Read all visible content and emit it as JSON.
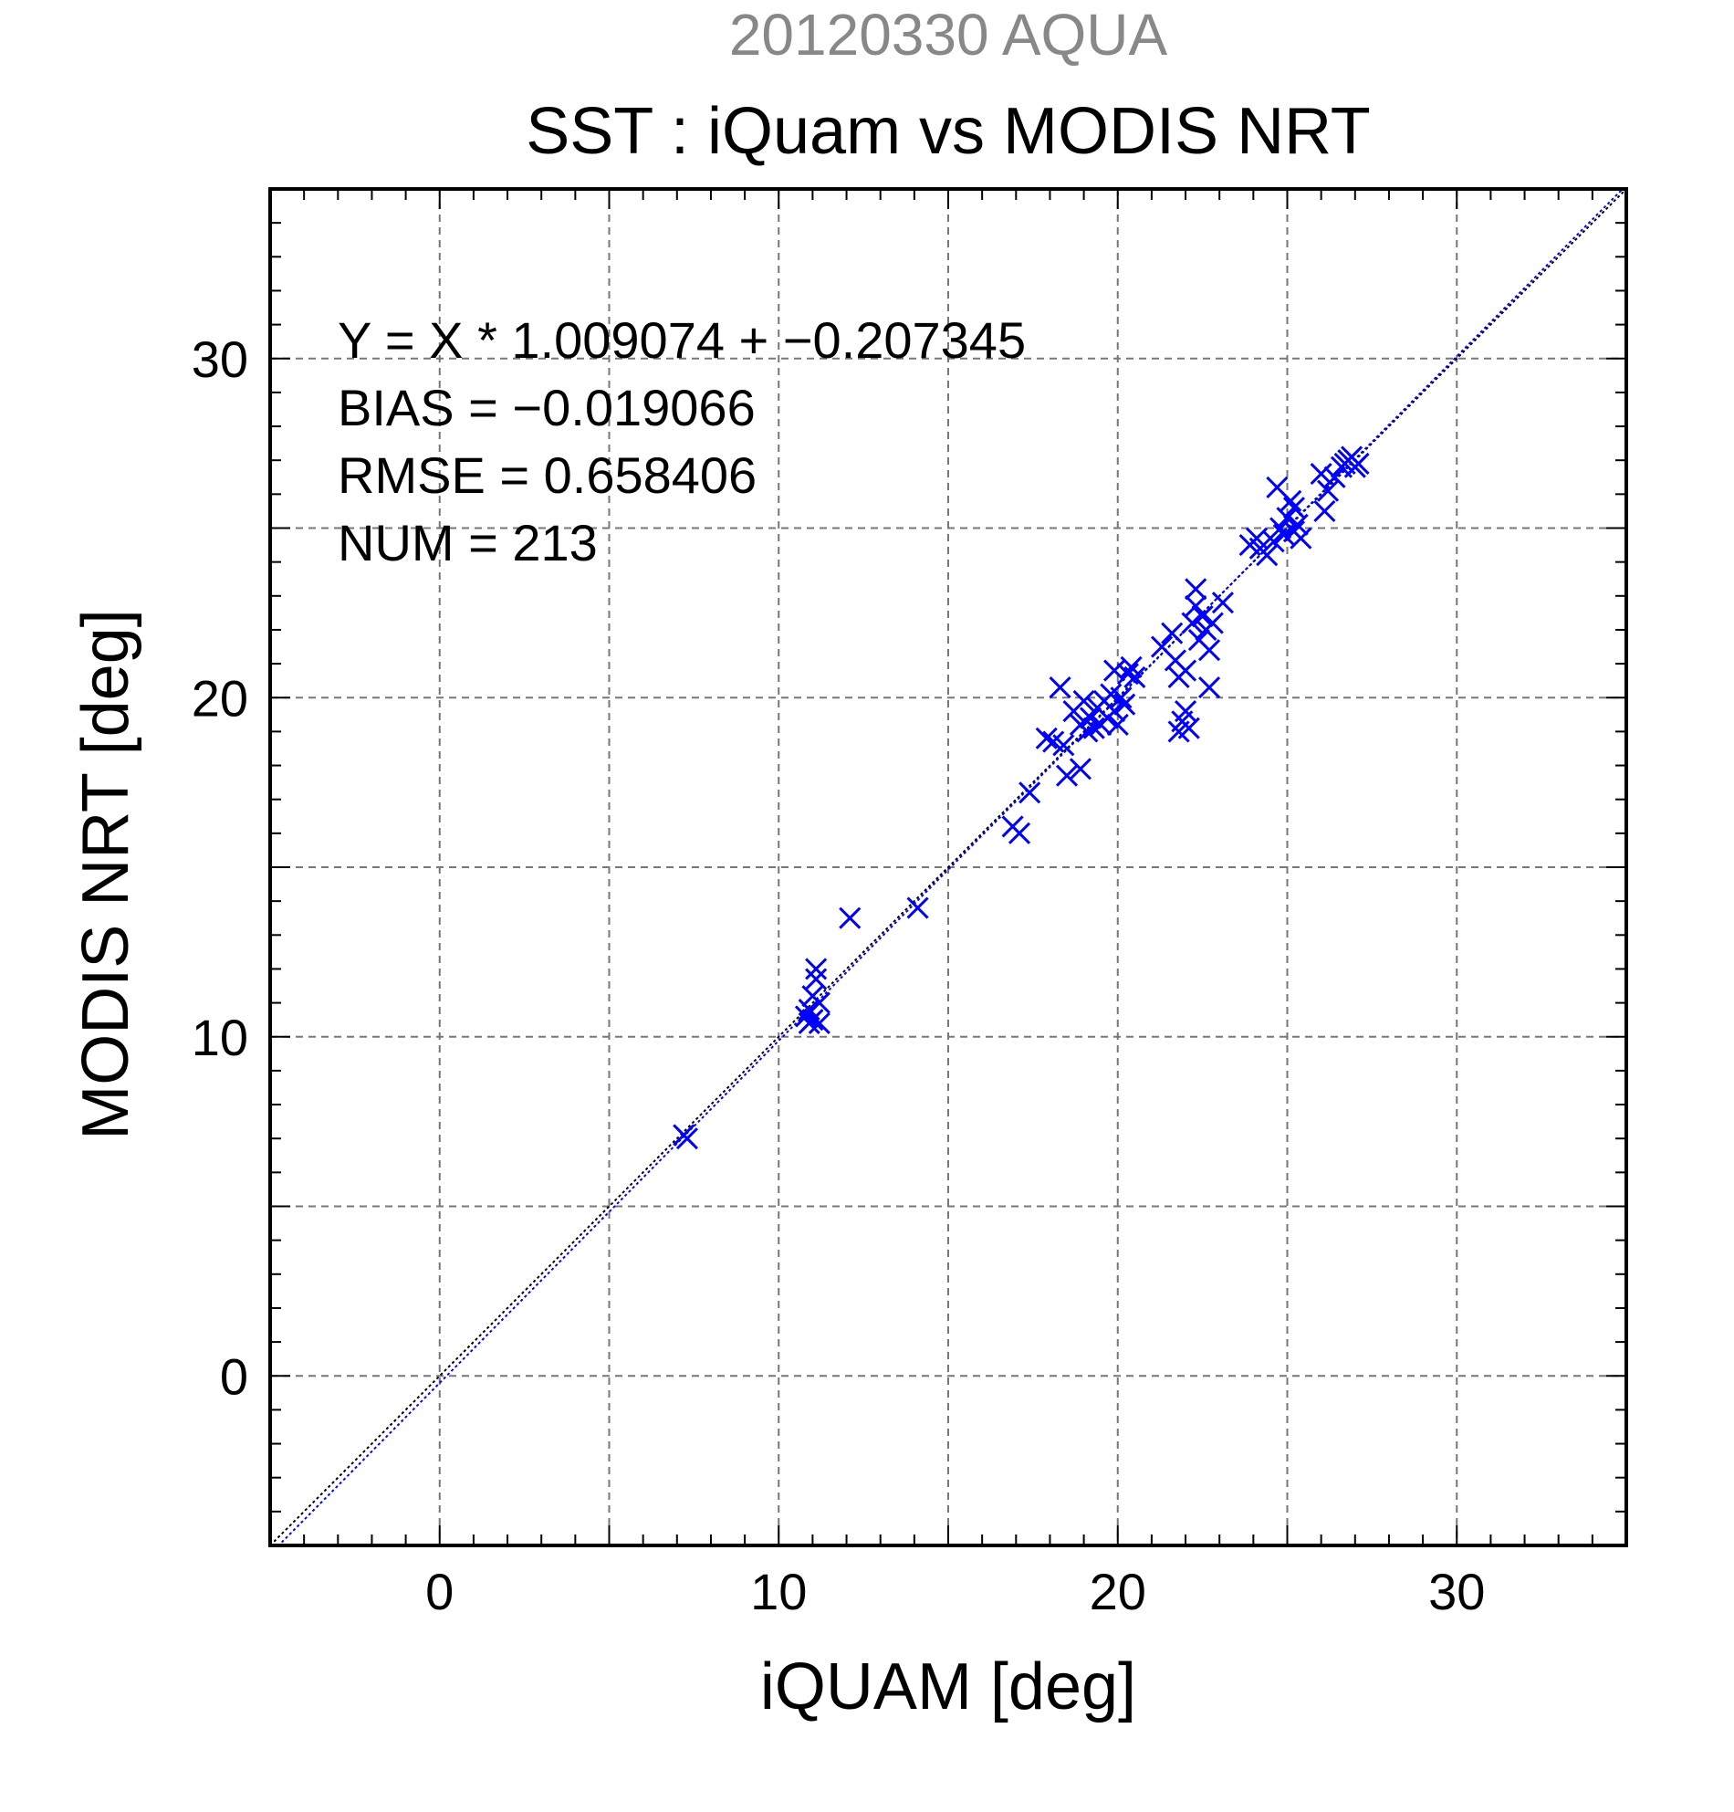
{
  "chart_data": {
    "type": "scatter",
    "supertitle": "20120330 AQUA",
    "title": "SST : iQuam vs MODIS NRT",
    "xlabel": "iQUAM [deg]",
    "ylabel": "MODIS NRT [deg]",
    "xlim": [
      -5,
      35
    ],
    "ylim": [
      -5,
      35
    ],
    "xticks": [
      0,
      10,
      20,
      30
    ],
    "yticks": [
      0,
      10,
      20,
      30
    ],
    "grid": true,
    "annotations": [
      "Y = X * 1.009074 + −0.207345",
      "BIAS = −0.019066",
      "RMSE = 0.658406",
      "NUM = 213"
    ],
    "fit_line": {
      "slope": 1.009074,
      "intercept": -0.207345
    },
    "reference_line": {
      "slope": 1,
      "intercept": 0
    },
    "marker_color": "#0000ff",
    "series": [
      {
        "marker": "x",
        "points": [
          [
            7.2,
            7.1
          ],
          [
            7.3,
            7.0
          ],
          [
            10.8,
            10.6
          ],
          [
            10.9,
            10.8
          ],
          [
            11.0,
            10.5
          ],
          [
            11.0,
            11.2
          ],
          [
            11.1,
            11.7
          ],
          [
            11.1,
            12.0
          ],
          [
            11.2,
            10.4
          ],
          [
            11.2,
            11.0
          ],
          [
            10.9,
            10.4
          ],
          [
            12.1,
            13.5
          ],
          [
            14.1,
            13.8
          ],
          [
            16.9,
            16.2
          ],
          [
            17.1,
            16.0
          ],
          [
            17.4,
            17.2
          ],
          [
            17.9,
            18.8
          ],
          [
            18.1,
            18.7
          ],
          [
            18.3,
            20.3
          ],
          [
            18.4,
            18.6
          ],
          [
            18.5,
            17.7
          ],
          [
            18.7,
            19.6
          ],
          [
            18.9,
            19.2
          ],
          [
            18.9,
            17.9
          ],
          [
            19.0,
            19.9
          ],
          [
            19.1,
            19.0
          ],
          [
            19.2,
            19.4
          ],
          [
            19.3,
            19.1
          ],
          [
            19.4,
            19.7
          ],
          [
            19.5,
            19.2
          ],
          [
            19.6,
            19.9
          ],
          [
            19.7,
            19.4
          ],
          [
            19.8,
            20.1
          ],
          [
            19.9,
            19.6
          ],
          [
            19.9,
            20.8
          ],
          [
            20.0,
            19.2
          ],
          [
            20.1,
            20.0
          ],
          [
            20.2,
            19.8
          ],
          [
            20.3,
            20.7
          ],
          [
            20.4,
            20.9
          ],
          [
            20.5,
            20.6
          ],
          [
            21.3,
            21.5
          ],
          [
            21.6,
            21.9
          ],
          [
            21.7,
            21.1
          ],
          [
            21.8,
            20.6
          ],
          [
            21.8,
            19.0
          ],
          [
            21.9,
            19.3
          ],
          [
            22.0,
            20.8
          ],
          [
            22.0,
            19.6
          ],
          [
            22.1,
            19.1
          ],
          [
            22.2,
            22.2
          ],
          [
            22.3,
            22.7
          ],
          [
            22.3,
            23.2
          ],
          [
            22.4,
            21.7
          ],
          [
            22.5,
            22.4
          ],
          [
            22.6,
            22.0
          ],
          [
            22.7,
            21.4
          ],
          [
            22.7,
            20.3
          ],
          [
            22.8,
            22.2
          ],
          [
            23.1,
            22.8
          ],
          [
            23.9,
            24.5
          ],
          [
            24.1,
            24.7
          ],
          [
            24.2,
            24.4
          ],
          [
            24.4,
            24.2
          ],
          [
            24.6,
            24.6
          ],
          [
            24.7,
            26.2
          ],
          [
            24.8,
            25.0
          ],
          [
            24.9,
            24.8
          ],
          [
            25.0,
            25.3
          ],
          [
            25.1,
            25.8
          ],
          [
            25.2,
            25.6
          ],
          [
            25.2,
            24.9
          ],
          [
            25.3,
            25.1
          ],
          [
            25.4,
            24.7
          ],
          [
            26.0,
            26.6
          ],
          [
            26.1,
            25.5
          ],
          [
            26.2,
            26.1
          ],
          [
            26.4,
            26.5
          ],
          [
            26.6,
            26.8
          ],
          [
            26.7,
            26.9
          ],
          [
            26.8,
            27.0
          ],
          [
            26.9,
            27.1
          ],
          [
            27.0,
            26.8
          ],
          [
            27.1,
            26.9
          ]
        ]
      }
    ]
  }
}
